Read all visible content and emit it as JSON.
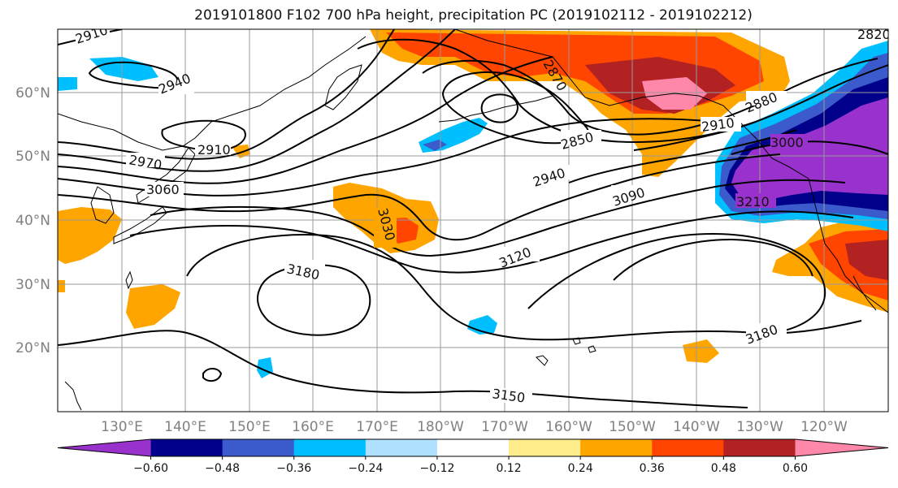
{
  "title": "2019101800 F102 700 hPa height, precipitation PC (2019102112 - 2019102212)",
  "map": {
    "lat_labels": [
      "60°N",
      "50°N",
      "40°N",
      "30°N",
      "20°N"
    ],
    "lon_labels": [
      "130°E",
      "140°E",
      "150°E",
      "160°E",
      "170°E",
      "180°W",
      "170°W",
      "160°W",
      "150°W",
      "140°W",
      "130°W",
      "120°W"
    ],
    "contour_labels": [
      "2910",
      "2940",
      "2910",
      "2970",
      "3060",
      "3030",
      "3180",
      "3150",
      "2850",
      "2940",
      "3090",
      "3120",
      "2880",
      "2910",
      "3000",
      "3210",
      "3180",
      "2820",
      "2870"
    ],
    "contour_color": "#000000",
    "coastline_color": "#000000",
    "gridline_color": "#999999"
  },
  "colorbar": {
    "colors": [
      "#9932cc",
      "#00008b",
      "#3b5bcc",
      "#00bfff",
      "#b0e0ff",
      "#ffffff",
      "#ffec8b",
      "#ffa500",
      "#ff4500",
      "#b22222",
      "#ff88aa"
    ],
    "tick_labels": [
      "−0.60",
      "−0.48",
      "−0.36",
      "−0.24",
      "−0.12",
      "0.12",
      "0.24",
      "0.36",
      "0.48",
      "0.60"
    ],
    "extend": "both"
  }
}
